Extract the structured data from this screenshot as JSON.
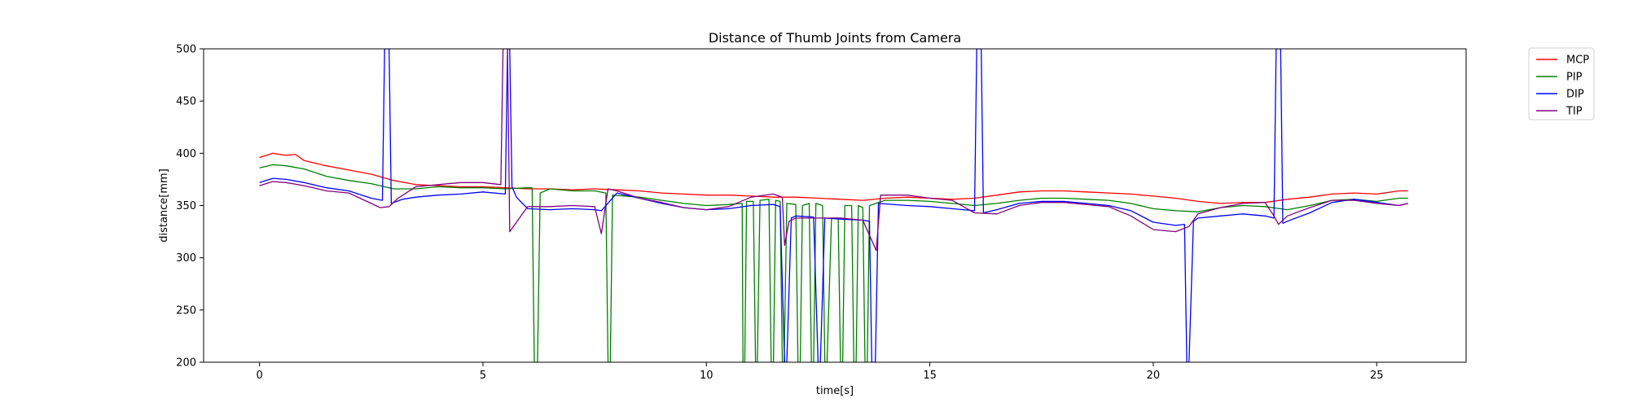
{
  "chart_data": {
    "type": "line",
    "title": "Distance of Thumb Joints from Camera",
    "xlabel": "time[s]",
    "ylabel": "distance[mm]",
    "xlim": [
      -1.25,
      27.0
    ],
    "ylim": [
      200,
      500
    ],
    "xticks": [
      0,
      5,
      10,
      15,
      20,
      25
    ],
    "yticks": [
      200,
      250,
      300,
      350,
      400,
      450,
      500
    ],
    "grid": false,
    "legend_position": "outside-top-right",
    "series": [
      {
        "name": "MCP",
        "color": "#ff0000",
        "points": [
          [
            0,
            396
          ],
          [
            0.3,
            400
          ],
          [
            0.6,
            398
          ],
          [
            0.8,
            399
          ],
          [
            1.0,
            393
          ],
          [
            1.5,
            388
          ],
          [
            2.0,
            384
          ],
          [
            2.5,
            380
          ],
          [
            3.0,
            374
          ],
          [
            3.5,
            370
          ],
          [
            4.0,
            369
          ],
          [
            4.5,
            368
          ],
          [
            5.0,
            368
          ],
          [
            5.5,
            367
          ],
          [
            6.0,
            366
          ],
          [
            6.5,
            366
          ],
          [
            7.0,
            365
          ],
          [
            7.5,
            366
          ],
          [
            8.0,
            365
          ],
          [
            8.5,
            364
          ],
          [
            9.0,
            362
          ],
          [
            9.5,
            361
          ],
          [
            10.0,
            360
          ],
          [
            10.5,
            360
          ],
          [
            11.0,
            359
          ],
          [
            11.5,
            358
          ],
          [
            12.0,
            358
          ],
          [
            12.5,
            357
          ],
          [
            13.0,
            356
          ],
          [
            13.5,
            355
          ],
          [
            14.0,
            357
          ],
          [
            14.5,
            358
          ],
          [
            15.0,
            357
          ],
          [
            15.5,
            356
          ],
          [
            16.0,
            357
          ],
          [
            16.5,
            360
          ],
          [
            17.0,
            363
          ],
          [
            17.5,
            364
          ],
          [
            18.0,
            364
          ],
          [
            18.5,
            363
          ],
          [
            19.0,
            362
          ],
          [
            19.5,
            361
          ],
          [
            20.0,
            359
          ],
          [
            20.5,
            357
          ],
          [
            21.0,
            354
          ],
          [
            21.5,
            352
          ],
          [
            22.0,
            353
          ],
          [
            22.5,
            353
          ],
          [
            23.0,
            356
          ],
          [
            23.5,
            358
          ],
          [
            24.0,
            361
          ],
          [
            24.5,
            362
          ],
          [
            25.0,
            361
          ],
          [
            25.5,
            364
          ],
          [
            25.7,
            364
          ]
        ]
      },
      {
        "name": "PIP",
        "color": "#008000",
        "points": [
          [
            0,
            386
          ],
          [
            0.3,
            389
          ],
          [
            0.6,
            388
          ],
          [
            1.0,
            385
          ],
          [
            1.5,
            378
          ],
          [
            2.0,
            374
          ],
          [
            2.5,
            371
          ],
          [
            3.0,
            366
          ],
          [
            3.5,
            366
          ],
          [
            4.0,
            368
          ],
          [
            4.5,
            367
          ],
          [
            5.0,
            367
          ],
          [
            5.5,
            366
          ],
          [
            6.0,
            367
          ],
          [
            6.1,
            367
          ],
          [
            6.15,
            200
          ],
          [
            6.22,
            200
          ],
          [
            6.28,
            362
          ],
          [
            6.5,
            366
          ],
          [
            7.0,
            364
          ],
          [
            7.5,
            364
          ],
          [
            7.75,
            362
          ],
          [
            7.8,
            200
          ],
          [
            7.85,
            200
          ],
          [
            7.9,
            360
          ],
          [
            8.5,
            358
          ],
          [
            9.0,
            355
          ],
          [
            9.5,
            352
          ],
          [
            10.0,
            350
          ],
          [
            10.5,
            351
          ],
          [
            10.8,
            352
          ],
          [
            10.82,
            200
          ],
          [
            10.86,
            200
          ],
          [
            10.9,
            354
          ],
          [
            11.05,
            354
          ],
          [
            11.1,
            200
          ],
          [
            11.14,
            200
          ],
          [
            11.2,
            355
          ],
          [
            11.4,
            356
          ],
          [
            11.45,
            200
          ],
          [
            11.5,
            200
          ],
          [
            11.55,
            355
          ],
          [
            11.65,
            354
          ],
          [
            11.7,
            200
          ],
          [
            11.74,
            200
          ],
          [
            11.8,
            352
          ],
          [
            12.0,
            351
          ],
          [
            12.05,
            200
          ],
          [
            12.1,
            200
          ],
          [
            12.15,
            350
          ],
          [
            12.3,
            352
          ],
          [
            12.35,
            200
          ],
          [
            12.4,
            200
          ],
          [
            12.45,
            352
          ],
          [
            12.6,
            350
          ],
          [
            12.65,
            200
          ],
          [
            12.7,
            200
          ],
          [
            12.8,
            338
          ],
          [
            12.95,
            338
          ],
          [
            13.0,
            200
          ],
          [
            13.05,
            200
          ],
          [
            13.1,
            350
          ],
          [
            13.25,
            350
          ],
          [
            13.3,
            200
          ],
          [
            13.35,
            200
          ],
          [
            13.4,
            350
          ],
          [
            13.5,
            348
          ],
          [
            13.55,
            200
          ],
          [
            13.6,
            200
          ],
          [
            13.65,
            350
          ],
          [
            14.0,
            355
          ],
          [
            14.5,
            355
          ],
          [
            15.0,
            354
          ],
          [
            15.5,
            352
          ],
          [
            16.0,
            350
          ],
          [
            16.5,
            352
          ],
          [
            17.0,
            355
          ],
          [
            17.5,
            357
          ],
          [
            18.0,
            357
          ],
          [
            18.5,
            356
          ],
          [
            19.0,
            355
          ],
          [
            19.5,
            352
          ],
          [
            20.0,
            347
          ],
          [
            20.5,
            345
          ],
          [
            21.0,
            344
          ],
          [
            21.5,
            348
          ],
          [
            22.0,
            350
          ],
          [
            22.5,
            349
          ],
          [
            23.0,
            346
          ],
          [
            23.5,
            350
          ],
          [
            24.0,
            355
          ],
          [
            24.5,
            356
          ],
          [
            25.0,
            354
          ],
          [
            25.5,
            357
          ],
          [
            25.7,
            357
          ]
        ]
      },
      {
        "name": "DIP",
        "color": "#0000ff",
        "points": [
          [
            0,
            372
          ],
          [
            0.3,
            376
          ],
          [
            0.6,
            375
          ],
          [
            1.0,
            372
          ],
          [
            1.5,
            367
          ],
          [
            2.0,
            364
          ],
          [
            2.5,
            357
          ],
          [
            2.75,
            355
          ],
          [
            2.8,
            500
          ],
          [
            2.9,
            500
          ],
          [
            2.95,
            352
          ],
          [
            3.2,
            356
          ],
          [
            3.5,
            358
          ],
          [
            4.0,
            360
          ],
          [
            4.5,
            361
          ],
          [
            5.0,
            363
          ],
          [
            5.5,
            361
          ],
          [
            5.55,
            500
          ],
          [
            5.6,
            500
          ],
          [
            5.65,
            368
          ],
          [
            5.75,
            358
          ],
          [
            6.0,
            347
          ],
          [
            6.5,
            346
          ],
          [
            7.0,
            347
          ],
          [
            7.5,
            346
          ],
          [
            7.65,
            345
          ],
          [
            8.0,
            362
          ],
          [
            8.5,
            357
          ],
          [
            9.0,
            352
          ],
          [
            9.5,
            348
          ],
          [
            10.0,
            346
          ],
          [
            10.5,
            347
          ],
          [
            11.0,
            350
          ],
          [
            11.5,
            351
          ],
          [
            11.65,
            349
          ],
          [
            11.75,
            200
          ],
          [
            11.8,
            200
          ],
          [
            11.9,
            338
          ],
          [
            12.0,
            340
          ],
          [
            12.4,
            339
          ],
          [
            12.5,
            200
          ],
          [
            12.55,
            200
          ],
          [
            12.65,
            338
          ],
          [
            13.0,
            337
          ],
          [
            13.5,
            336
          ],
          [
            13.65,
            335
          ],
          [
            13.7,
            200
          ],
          [
            13.78,
            200
          ],
          [
            13.85,
            352
          ],
          [
            14.5,
            350
          ],
          [
            15.0,
            349
          ],
          [
            15.5,
            347
          ],
          [
            16.0,
            345
          ],
          [
            16.05,
            500
          ],
          [
            16.15,
            500
          ],
          [
            16.2,
            343
          ],
          [
            16.5,
            346
          ],
          [
            17.0,
            352
          ],
          [
            17.5,
            354
          ],
          [
            18.0,
            354
          ],
          [
            18.5,
            352
          ],
          [
            19.0,
            350
          ],
          [
            19.5,
            345
          ],
          [
            20.0,
            334
          ],
          [
            20.5,
            331
          ],
          [
            20.7,
            332
          ],
          [
            20.75,
            200
          ],
          [
            20.8,
            200
          ],
          [
            20.9,
            335
          ],
          [
            21.0,
            338
          ],
          [
            21.5,
            340
          ],
          [
            22.0,
            342
          ],
          [
            22.5,
            340
          ],
          [
            22.7,
            338
          ],
          [
            22.75,
            500
          ],
          [
            22.85,
            500
          ],
          [
            22.9,
            333
          ],
          [
            23.0,
            335
          ],
          [
            23.5,
            343
          ],
          [
            24.0,
            353
          ],
          [
            24.5,
            356
          ],
          [
            25.0,
            353
          ],
          [
            25.5,
            350
          ],
          [
            25.7,
            352
          ]
        ]
      },
      {
        "name": "TIP",
        "color": "#800080",
        "points": [
          [
            0,
            369
          ],
          [
            0.3,
            373
          ],
          [
            0.6,
            372
          ],
          [
            1.0,
            369
          ],
          [
            1.5,
            364
          ],
          [
            2.0,
            362
          ],
          [
            2.5,
            352
          ],
          [
            2.7,
            348
          ],
          [
            2.9,
            349
          ],
          [
            3.1,
            357
          ],
          [
            3.5,
            368
          ],
          [
            4.0,
            370
          ],
          [
            4.5,
            372
          ],
          [
            5.0,
            372
          ],
          [
            5.4,
            370
          ],
          [
            5.45,
            500
          ],
          [
            5.55,
            500
          ],
          [
            5.6,
            325
          ],
          [
            5.8,
            337
          ],
          [
            6.0,
            349
          ],
          [
            6.5,
            349
          ],
          [
            7.0,
            350
          ],
          [
            7.5,
            349
          ],
          [
            7.65,
            323
          ],
          [
            7.8,
            366
          ],
          [
            8.0,
            364
          ],
          [
            8.5,
            357
          ],
          [
            9.0,
            353
          ],
          [
            9.5,
            348
          ],
          [
            10.0,
            346
          ],
          [
            10.5,
            349
          ],
          [
            11.0,
            358
          ],
          [
            11.5,
            361
          ],
          [
            11.7,
            358
          ],
          [
            11.75,
            312
          ],
          [
            11.85,
            335
          ],
          [
            12.0,
            338
          ],
          [
            12.5,
            338
          ],
          [
            13.0,
            338
          ],
          [
            13.5,
            336
          ],
          [
            13.8,
            307
          ],
          [
            13.9,
            360
          ],
          [
            14.5,
            360
          ],
          [
            15.0,
            357
          ],
          [
            15.5,
            355
          ],
          [
            16.0,
            343
          ],
          [
            16.5,
            342
          ],
          [
            17.0,
            350
          ],
          [
            17.5,
            353
          ],
          [
            18.0,
            353
          ],
          [
            18.5,
            351
          ],
          [
            19.0,
            349
          ],
          [
            19.5,
            340
          ],
          [
            20.0,
            327
          ],
          [
            20.5,
            325
          ],
          [
            20.8,
            330
          ],
          [
            21.0,
            342
          ],
          [
            21.5,
            348
          ],
          [
            22.0,
            352
          ],
          [
            22.5,
            353
          ],
          [
            22.7,
            340
          ],
          [
            22.8,
            332
          ],
          [
            23.0,
            340
          ],
          [
            23.5,
            348
          ],
          [
            24.0,
            355
          ],
          [
            24.5,
            355
          ],
          [
            25.0,
            352
          ],
          [
            25.5,
            350
          ],
          [
            25.7,
            352
          ]
        ]
      }
    ]
  }
}
